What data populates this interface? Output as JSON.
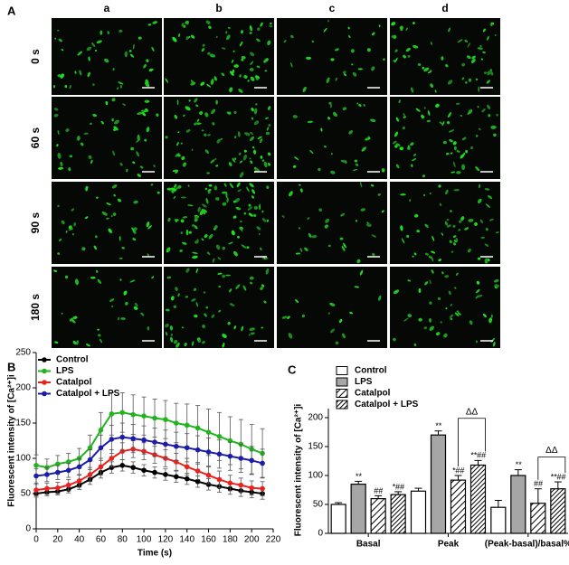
{
  "panel_a": {
    "label": "A",
    "columns": [
      "a",
      "b",
      "c",
      "d"
    ],
    "rows": [
      "0 s",
      "60 s",
      "90 s",
      "180 s"
    ]
  },
  "chart_data": [
    {
      "type": "line",
      "panel_label": "B",
      "x_label": "Time (s)",
      "y_label": "Fluorescent intensity of [Ca²⁺]i",
      "x": [
        0,
        10,
        20,
        30,
        40,
        50,
        60,
        70,
        80,
        90,
        100,
        110,
        120,
        130,
        140,
        150,
        160,
        170,
        180,
        190,
        200,
        210
      ],
      "xlim": [
        0,
        220
      ],
      "xticks": [
        0,
        20,
        40,
        60,
        80,
        100,
        120,
        140,
        160,
        180,
        200,
        220
      ],
      "ylim": [
        0,
        250
      ],
      "yticks": [
        0,
        50,
        100,
        150,
        200,
        250
      ],
      "legend": "upper left",
      "series": [
        {
          "name": "Control",
          "color": "#000000",
          "values": [
            50,
            52,
            53,
            56,
            62,
            70,
            80,
            87,
            90,
            87,
            83,
            80,
            77,
            74,
            71,
            67,
            63,
            60,
            57,
            54,
            52,
            50
          ],
          "errors": [
            5,
            5,
            5,
            5,
            6,
            7,
            8,
            8,
            8,
            8,
            8,
            8,
            8,
            8,
            8,
            8,
            8,
            8,
            8,
            8,
            8,
            8
          ]
        },
        {
          "name": "LPS",
          "color": "#22b41e",
          "values": [
            90,
            87,
            92,
            95,
            100,
            115,
            140,
            163,
            165,
            162,
            160,
            157,
            155,
            150,
            147,
            143,
            137,
            131,
            125,
            120,
            113,
            107
          ],
          "errors": [
            15,
            12,
            12,
            12,
            14,
            18,
            25,
            30,
            28,
            28,
            27,
            27,
            27,
            28,
            30,
            32,
            33,
            34,
            34,
            35,
            35,
            35
          ]
        },
        {
          "name": "Catalpol",
          "color": "#e8221e",
          "values": [
            55,
            57,
            58,
            62,
            68,
            77,
            88,
            100,
            110,
            113,
            110,
            105,
            100,
            95,
            88,
            82,
            76,
            70,
            65,
            62,
            58,
            57
          ],
          "errors": [
            8,
            8,
            8,
            8,
            9,
            10,
            12,
            12,
            12,
            12,
            12,
            12,
            12,
            12,
            12,
            12,
            12,
            12,
            11,
            10,
            10,
            10
          ]
        },
        {
          "name": "Catalpol + LPS",
          "color": "#1c1ca8",
          "values": [
            75,
            77,
            80,
            83,
            88,
            98,
            115,
            127,
            130,
            128,
            126,
            123,
            120,
            117,
            115,
            112,
            109,
            106,
            103,
            100,
            97,
            93
          ],
          "errors": [
            10,
            10,
            10,
            10,
            12,
            14,
            18,
            20,
            20,
            20,
            20,
            20,
            20,
            20,
            20,
            20,
            20,
            20,
            20,
            20,
            20,
            20
          ]
        }
      ]
    },
    {
      "type": "bar",
      "panel_label": "C",
      "y_label": "Fluorescent intensity of [Ca²⁺]i",
      "categories": [
        "Basal",
        "Peak",
        "(Peak-basal)/basal%"
      ],
      "ylim": [
        0,
        200
      ],
      "yticks": [
        0,
        50,
        100,
        150,
        200
      ],
      "legend": "upper left",
      "bracket_labels": [
        null,
        "ΔΔ",
        "ΔΔ"
      ],
      "series": [
        {
          "name": "Control",
          "fill": "white",
          "values": [
            50,
            73,
            45
          ],
          "errors": [
            3,
            5,
            12
          ],
          "annotations": [
            null,
            null,
            null
          ]
        },
        {
          "name": "LPS",
          "fill": "#a6a6a6",
          "values": [
            85,
            170,
            100
          ],
          "errors": [
            5,
            7,
            10
          ],
          "annotations": [
            "**",
            "**",
            "**"
          ]
        },
        {
          "name": "Catalpol",
          "fill": "hatch",
          "values": [
            60,
            92,
            52
          ],
          "errors": [
            5,
            8,
            25
          ],
          "annotations": [
            "##",
            "*##",
            "##"
          ]
        },
        {
          "name": "Catalpol + LPS",
          "fill": "hatch-dense",
          "values": [
            67,
            118,
            77
          ],
          "errors": [
            5,
            8,
            12
          ],
          "annotations": [
            "*##",
            "**##",
            "**##"
          ]
        }
      ]
    }
  ]
}
